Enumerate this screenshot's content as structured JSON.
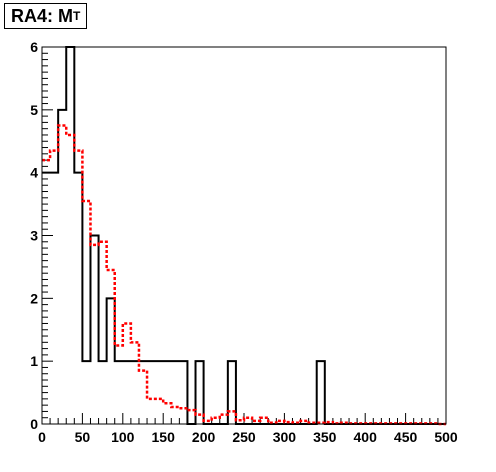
{
  "chart_data": {
    "type": "histogram",
    "title": {
      "main": "RA4: M",
      "sub": "T"
    },
    "xlim": [
      0,
      500
    ],
    "ylim": [
      0,
      6
    ],
    "grid": false,
    "xticks": [
      0,
      50,
      100,
      150,
      200,
      250,
      300,
      350,
      400,
      450,
      500
    ],
    "yticks": [
      0,
      1,
      2,
      3,
      4,
      5,
      6
    ],
    "bin_width": 10,
    "series": [
      {
        "style": "solid",
        "color": "#000000",
        "values": [
          4,
          4,
          5,
          6,
          4,
          1,
          3,
          1,
          2,
          1,
          1,
          1,
          1,
          1,
          1,
          1,
          1,
          1,
          0,
          1,
          0,
          0,
          0,
          1,
          0,
          0,
          0,
          0,
          0,
          0,
          0,
          0,
          0,
          0,
          1,
          0,
          0,
          0,
          0,
          0,
          0,
          0,
          0,
          0,
          0,
          0,
          0,
          0,
          0,
          0
        ]
      },
      {
        "style": "dotted",
        "color": "#ff0000",
        "values": [
          4.2,
          4.35,
          4.75,
          4.6,
          4.35,
          3.55,
          2.85,
          2.9,
          2.45,
          1.25,
          1.6,
          1.3,
          0.85,
          0.4,
          0.4,
          0.33,
          0.27,
          0.25,
          0.22,
          0.15,
          0.05,
          0.1,
          0.15,
          0.2,
          0.06,
          0.1,
          0.05,
          0.1,
          0.02,
          0.05,
          0.03,
          0.02,
          0.05,
          0.02,
          0.02,
          0.03,
          0.01,
          0.02,
          0.01,
          0.01,
          0.01,
          0.01,
          0.01,
          0.01,
          0.01,
          0.01,
          0.01,
          0.01,
          0.01,
          0.0
        ]
      }
    ]
  }
}
